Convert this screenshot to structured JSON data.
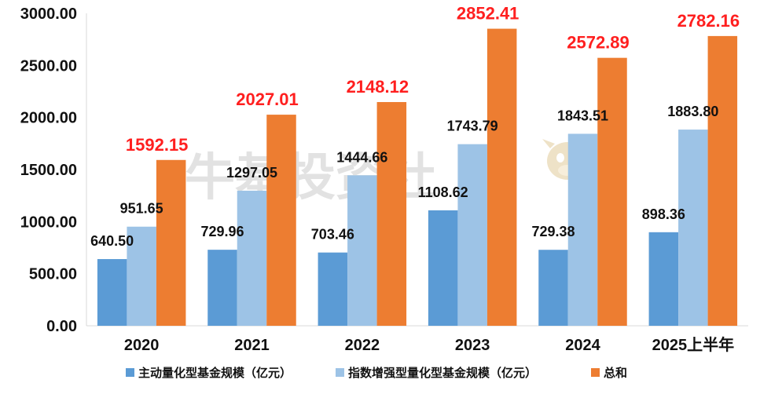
{
  "watermark": {
    "text": "牛基投资社"
  },
  "chart_data": {
    "type": "bar",
    "categories": [
      "2020",
      "2021",
      "2022",
      "2023",
      "2024",
      "2025上半年"
    ],
    "series": [
      {
        "name": "主动量化型基金规模（亿元）",
        "color": "#5b9bd5",
        "values": [
          640.5,
          729.96,
          703.46,
          1108.62,
          729.38,
          898.36
        ],
        "labels": [
          "640.50",
          "729.96",
          "703.46",
          "1108.62",
          "729.38",
          "898.36"
        ]
      },
      {
        "name": "指数增强型量化型基金规模（亿元）",
        "color": "#9dc3e6",
        "values": [
          951.65,
          1297.05,
          1444.66,
          1743.79,
          1843.51,
          1883.8
        ],
        "labels": [
          "951.65",
          "1297.05",
          "1444.66",
          "1743.79",
          "1843.51",
          "1883.80"
        ]
      },
      {
        "name": "总和",
        "color": "#ed7d31",
        "values": [
          1592.15,
          2027.01,
          2148.12,
          2852.41,
          2572.89,
          2782.16
        ],
        "labels": [
          "1592.15",
          "2027.01",
          "2148.12",
          "2852.41",
          "2572.89",
          "2782.16"
        ]
      }
    ],
    "ylim": [
      0,
      3000
    ],
    "yticks": [
      0,
      500,
      1000,
      1500,
      2000,
      2500,
      3000
    ],
    "ytick_labels": [
      "0.00",
      "500.00",
      "1000.00",
      "1500.00",
      "2000.00",
      "2500.00",
      "3000.00"
    ],
    "grid": false,
    "legend": "bottom",
    "total_label_color": "#ff1f1f"
  }
}
